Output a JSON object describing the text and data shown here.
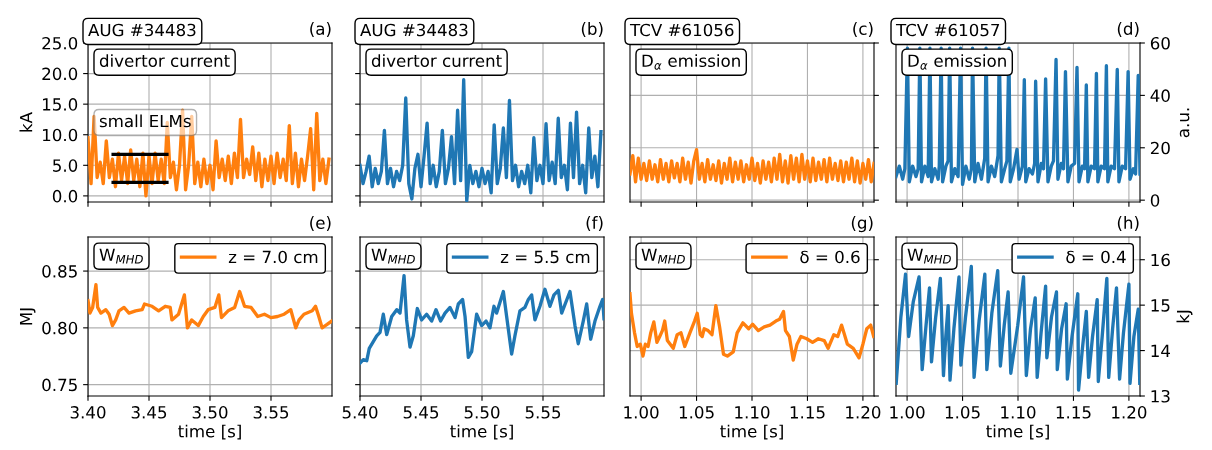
{
  "chart_data": [
    {
      "type": "line",
      "title": "AUG #34483",
      "ylabel": "kA",
      "annotations": [
        "(a)",
        "divertor current",
        "small ELMs"
      ],
      "xlim": [
        3.4,
        3.6
      ],
      "xticks": [
        3.4,
        3.45,
        3.5,
        3.55
      ],
      "ylim": [
        -1,
        25
      ],
      "yticks": [
        {
          "value": 0,
          "label": "0.0"
        },
        {
          "value": 5,
          "label": "5.0"
        },
        {
          "value": 10,
          "label": "10.0"
        },
        {
          "value": 15,
          "label": "15.0"
        },
        {
          "value": 20,
          "label": "20.0"
        },
        {
          "value": 25,
          "label": "25.0"
        }
      ],
      "grid": true,
      "tick_labels": "y",
      "series": [
        {
          "color": "#ff7f0e",
          "x": [
            3.4,
            3.4025,
            3.405,
            3.4075,
            3.41,
            3.4125,
            3.415,
            3.4175,
            3.42,
            3.4225,
            3.425,
            3.4275,
            3.43,
            3.4325,
            3.435,
            3.4375,
            3.44,
            3.4425,
            3.445,
            3.4475,
            3.45,
            3.4525,
            3.455,
            3.4575,
            3.46,
            3.4625,
            3.465,
            3.4675,
            3.47,
            3.4725,
            3.475,
            3.4775,
            3.48,
            3.4825,
            3.485,
            3.4875,
            3.49,
            3.4925,
            3.495,
            3.4975,
            3.5,
            3.5025,
            3.505,
            3.5075,
            3.51,
            3.5125,
            3.515,
            3.5175,
            3.52,
            3.5225,
            3.525,
            3.5275,
            3.53,
            3.5325,
            3.535,
            3.5375,
            3.54,
            3.5425,
            3.545,
            3.5475,
            3.55,
            3.5525,
            3.555,
            3.5575,
            3.56,
            3.5625,
            3.565,
            3.5675,
            3.57,
            3.5725,
            3.575,
            3.5775,
            3.58,
            3.5825,
            3.585,
            3.5875,
            3.59,
            3.5925,
            3.595,
            3.5975
          ],
          "values": [
            9.5,
            2,
            13,
            3,
            5.5,
            2,
            9,
            3,
            6,
            1.5,
            7,
            2.5,
            6.5,
            2,
            7.5,
            2.5,
            6,
            1.5,
            7,
            0,
            6.5,
            2,
            7,
            2.5,
            6,
            2,
            12,
            3,
            5.5,
            1,
            5,
            14,
            1,
            5,
            13,
            2,
            5.5,
            1.5,
            6,
            2,
            5,
            1,
            9,
            3,
            6,
            2.5,
            6.5,
            2,
            7,
            3,
            12.5,
            3,
            6,
            3.5,
            8,
            2.5,
            7,
            1.5,
            6,
            2.5,
            6.5,
            2,
            7,
            3,
            6,
            2.5,
            11.5,
            2,
            7,
            1.5,
            6,
            2.5,
            6.5,
            11,
            1,
            13.5,
            2.5,
            6,
            2,
            6
          ]
        },
        {
          "color": "#000000",
          "x": [
            3.4206,
            3.4647
          ],
          "values": [
            6.8,
            6.8
          ]
        },
        {
          "color": "#000000",
          "x": [
            3.4206,
            3.4647
          ],
          "values": [
            2.2,
            2.2
          ]
        }
      ]
    },
    {
      "type": "line",
      "title": "AUG #34483",
      "annotations": [
        "(b)",
        "divertor current"
      ],
      "xlim": [
        5.4,
        5.6
      ],
      "xticks": [
        5.4,
        5.45,
        5.5,
        5.55
      ],
      "ylim": [
        -1,
        25
      ],
      "yticks": [
        0,
        5,
        10,
        15,
        20,
        25
      ],
      "grid": true,
      "tick_labels": false,
      "series": [
        {
          "color": "#1f77b4",
          "x": [
            5.4,
            5.4025,
            5.405,
            5.4075,
            5.41,
            5.4125,
            5.415,
            5.4175,
            5.42,
            5.4225,
            5.425,
            5.4275,
            5.43,
            5.4325,
            5.435,
            5.4375,
            5.44,
            5.4425,
            5.445,
            5.4475,
            5.45,
            5.4525,
            5.455,
            5.4575,
            5.46,
            5.4625,
            5.465,
            5.4675,
            5.47,
            5.4725,
            5.475,
            5.4775,
            5.48,
            5.4825,
            5.485,
            5.4875,
            5.49,
            5.4925,
            5.495,
            5.4975,
            5.5,
            5.5025,
            5.505,
            5.5075,
            5.51,
            5.5125,
            5.515,
            5.5175,
            5.52,
            5.5225,
            5.525,
            5.5275,
            5.53,
            5.5325,
            5.535,
            5.5375,
            5.54,
            5.5425,
            5.545,
            5.5475,
            5.55,
            5.5525,
            5.555,
            5.5575,
            5.56,
            5.5625,
            5.565,
            5.5675,
            5.57,
            5.5725,
            5.575,
            5.5775,
            5.58,
            5.5825,
            5.585,
            5.5875,
            5.59,
            5.5925,
            5.595,
            5.5975
          ],
          "values": [
            5,
            2,
            4,
            6.5,
            1.5,
            4.5,
            2,
            4,
            10.7,
            2,
            4.5,
            1.5,
            4,
            2.5,
            5,
            16,
            2,
            -0.5,
            4.5,
            6.8,
            1.5,
            6.5,
            11.9,
            2,
            5,
            1.5,
            4,
            10.7,
            2,
            4.5,
            9.7,
            2,
            14,
            2.5,
            19,
            -0.8,
            5,
            2,
            4,
            1.5,
            4.5,
            2,
            4,
            0.5,
            11.6,
            2,
            4.5,
            11.1,
            3,
            15.6,
            2.5,
            5,
            1.5,
            4,
            2,
            5,
            0.5,
            9.5,
            2.5,
            5,
            2,
            11.8,
            2.5,
            5.5,
            2,
            12.7,
            3,
            5,
            1,
            11.9,
            3,
            13.7,
            2,
            5,
            0.5,
            11.1,
            3,
            6.5,
            1.5,
            10.5
          ]
        }
      ]
    },
    {
      "type": "line",
      "title": "TCV #61056",
      "annotations": [
        "(c)",
        "D$_{α}$ emission"
      ],
      "xlim": [
        0.99,
        1.21
      ],
      "xticks": [
        1.0,
        1.05,
        1.1,
        1.15,
        1.2
      ],
      "y2lim": [
        -0.7,
        60
      ],
      "y2ticks": [
        0,
        20,
        40,
        60
      ],
      "grid": true,
      "tick_labels": false,
      "series": [
        {
          "color": "#ff7f0e",
          "axis": "y2",
          "x": [
            0.99,
            0.9925,
            0.995,
            0.9975,
            1.0,
            1.0025,
            1.005,
            1.0075,
            1.01,
            1.0125,
            1.015,
            1.0175,
            1.02,
            1.0225,
            1.025,
            1.0275,
            1.03,
            1.0325,
            1.035,
            1.0375,
            1.04,
            1.0425,
            1.045,
            1.0475,
            1.05,
            1.0525,
            1.055,
            1.0575,
            1.06,
            1.0625,
            1.065,
            1.0675,
            1.07,
            1.0725,
            1.075,
            1.0775,
            1.08,
            1.0825,
            1.085,
            1.0875,
            1.09,
            1.0925,
            1.095,
            1.0975,
            1.1,
            1.1025,
            1.105,
            1.1075,
            1.11,
            1.1125,
            1.115,
            1.1175,
            1.12,
            1.1225,
            1.125,
            1.1275,
            1.13,
            1.1325,
            1.135,
            1.1375,
            1.14,
            1.1425,
            1.145,
            1.1475,
            1.15,
            1.1525,
            1.155,
            1.1575,
            1.16,
            1.1625,
            1.165,
            1.1675,
            1.17,
            1.1725,
            1.175,
            1.1775,
            1.18,
            1.1825,
            1.185,
            1.1875,
            1.19,
            1.1925,
            1.195,
            1.1975,
            1.2,
            1.2025,
            1.205,
            1.2075,
            1.21
          ],
          "values": [
            10,
            17,
            7,
            16,
            8,
            14,
            7.5,
            15,
            8,
            13.5,
            7,
            15.5,
            8,
            14,
            7,
            15,
            8.5,
            14,
            7,
            16,
            8,
            14.5,
            6.5,
            15,
            19.3,
            8,
            14,
            7,
            15.5,
            8,
            13.5,
            7.5,
            15,
            6.5,
            14,
            8,
            16,
            7,
            14.5,
            8,
            15,
            7,
            13.5,
            8,
            16,
            7.5,
            14,
            6.5,
            15,
            8,
            14.5,
            7,
            16,
            8,
            17.5,
            7,
            15,
            6.5,
            17,
            8,
            16,
            7,
            17.5,
            8,
            15,
            7,
            16,
            7.5,
            14.5,
            8,
            15.5,
            7,
            16,
            8,
            14,
            7.5,
            15,
            7,
            14.5,
            8,
            16,
            7,
            15,
            6.5,
            14,
            8,
            15.5,
            7,
            14
          ]
        }
      ]
    },
    {
      "type": "line",
      "title": "TCV #61057",
      "y2label": "a.u.",
      "annotations": [
        "(d)",
        "D$_{α}$ emission"
      ],
      "xlim": [
        0.99,
        1.21
      ],
      "xticks": [
        1.0,
        1.05,
        1.1,
        1.15,
        1.2
      ],
      "y2lim": [
        -0.7,
        60
      ],
      "y2ticks": [
        0,
        20,
        40,
        60
      ],
      "grid": true,
      "tick_labels": "y",
      "series": [
        {
          "color": "#1f77b4",
          "axis": "y2",
          "x": [
            0.99,
            0.993,
            0.996,
            0.998,
            1.0003,
            1.002,
            1.005,
            1.008,
            1.01,
            1.0115,
            1.013,
            1.016,
            1.019,
            1.0206,
            1.022,
            1.025,
            1.028,
            1.029,
            1.0307,
            1.032,
            1.035,
            1.037,
            1.0384,
            1.04,
            1.043,
            1.046,
            1.0482,
            1.05,
            1.053,
            1.056,
            1.058,
            1.059,
            1.061,
            1.064,
            1.067,
            1.07,
            1.0712,
            1.073,
            1.076,
            1.079,
            1.082,
            1.0831,
            1.085,
            1.088,
            1.09,
            1.0918,
            1.093,
            1.096,
            1.0991,
            1.101,
            1.104,
            1.1057,
            1.107,
            1.11,
            1.113,
            1.115,
            1.1159,
            1.118,
            1.121,
            1.123,
            1.1249,
            1.127,
            1.13,
            1.132,
            1.1343,
            1.136,
            1.139,
            1.141,
            1.1428,
            1.145,
            1.148,
            1.151,
            1.1532,
            1.155,
            1.158,
            1.16,
            1.1616,
            1.163,
            1.166,
            1.169,
            1.1707,
            1.172,
            1.175,
            1.178,
            1.1797,
            1.181,
            1.184,
            1.187,
            1.1895,
            1.191,
            1.194,
            1.197,
            1.1993,
            1.201,
            1.204,
            1.206,
            1.2084,
            1.21
          ],
          "values": [
            9,
            13,
            8,
            12,
            58,
            7,
            13,
            9,
            12,
            58,
            7,
            13,
            9,
            58,
            7,
            12,
            8,
            13,
            58,
            7,
            13,
            15,
            58,
            7,
            12,
            9,
            58,
            6,
            13,
            8,
            12,
            58,
            7,
            14,
            8,
            16,
            58,
            7,
            13,
            9,
            17,
            58,
            7,
            12,
            15,
            58,
            7,
            12,
            19.4,
            8,
            13,
            46,
            7,
            12,
            10,
            14,
            45.4,
            7,
            14,
            12,
            46.3,
            7,
            13,
            15,
            53.7,
            8,
            14,
            12,
            49.1,
            7,
            13,
            14,
            50.7,
            7,
            13,
            12,
            44,
            7,
            13,
            12,
            48.4,
            7,
            13,
            12,
            51.3,
            7,
            13,
            12,
            49.9,
            7,
            13,
            12,
            49.1,
            8,
            12,
            10,
            47.6,
            10
          ]
        }
      ]
    },
    {
      "type": "line",
      "xlabel": "time [s]",
      "ylabel": "MJ",
      "annotations": [
        "(e)",
        "W$_{MHD}$"
      ],
      "xlim": [
        3.4,
        3.6
      ],
      "xticks": [
        {
          "value": 3.4,
          "label": "3.40"
        },
        {
          "value": 3.45,
          "label": "3.45"
        },
        {
          "value": 3.5,
          "label": "3.50"
        },
        {
          "value": 3.55,
          "label": "3.55"
        }
      ],
      "ylim": [
        0.74,
        0.88
      ],
      "yticks": [
        {
          "value": 0.75,
          "label": "0.75"
        },
        {
          "value": 0.8,
          "label": "0.80"
        },
        {
          "value": 0.85,
          "label": "0.85"
        }
      ],
      "grid": true,
      "legend": "top right",
      "series": [
        {
          "name": "z = 7.0 cm",
          "color": "#ff7f0e",
          "x": [
            3.4,
            3.4016,
            3.4038,
            3.4065,
            3.4079,
            3.4106,
            3.4146,
            3.4173,
            3.42,
            3.4227,
            3.4254,
            3.4295,
            3.4336,
            3.439,
            3.4444,
            3.4463,
            3.4525,
            3.4579,
            3.4633,
            3.4674,
            3.4688,
            3.4742,
            3.479,
            3.4815,
            3.485,
            3.4904,
            3.4945,
            3.4985,
            3.504,
            3.5072,
            3.5094,
            3.5148,
            3.5202,
            3.5243,
            3.5283,
            3.5337,
            3.5391,
            3.5446,
            3.55,
            3.5554,
            3.5608,
            3.5662,
            3.5703,
            3.573,
            3.577,
            3.5838,
            3.5865,
            3.5892,
            3.5919,
            3.596,
            3.5998
          ],
          "values": [
            0.824,
            0.813,
            0.818,
            0.838,
            0.818,
            0.813,
            0.816,
            0.812,
            0.802,
            0.807,
            0.815,
            0.818,
            0.813,
            0.815,
            0.816,
            0.821,
            0.819,
            0.815,
            0.819,
            0.818,
            0.807,
            0.812,
            0.829,
            0.8,
            0.807,
            0.802,
            0.81,
            0.816,
            0.818,
            0.829,
            0.809,
            0.815,
            0.818,
            0.832,
            0.819,
            0.818,
            0.81,
            0.812,
            0.809,
            0.81,
            0.812,
            0.816,
            0.8,
            0.807,
            0.812,
            0.815,
            0.819,
            0.81,
            0.8,
            0.803,
            0.806
          ]
        }
      ]
    },
    {
      "type": "line",
      "xlabel": "time [s]",
      "annotations": [
        "(f)",
        "W$_{MHD}$"
      ],
      "xlim": [
        5.4,
        5.6
      ],
      "xticks": [
        {
          "value": 5.4,
          "label": "5.40"
        },
        5.45,
        {
          "value": 5.5,
          "label": "5.50"
        },
        5.55
      ],
      "ylim": [
        0.74,
        0.88
      ],
      "yticks": [
        0.75,
        0.8,
        0.85
      ],
      "grid": true,
      "legend": "top right",
      "tick_labels": "x",
      "series": [
        {
          "name": "z = 5.5 cm",
          "color": "#1f77b4",
          "x": [
            5.4,
            5.4027,
            5.4055,
            5.4076,
            5.4104,
            5.4137,
            5.4164,
            5.4191,
            5.4219,
            5.426,
            5.4301,
            5.4328,
            5.4361,
            5.4382,
            5.441,
            5.4437,
            5.447,
            5.4505,
            5.4546,
            5.4587,
            5.4623,
            5.4661,
            5.4697,
            5.4738,
            5.4779,
            5.4806,
            5.4841,
            5.4861,
            5.4888,
            5.4915,
            5.4956,
            5.4997,
            5.5033,
            5.5065,
            5.5098,
            5.512,
            5.5175,
            5.5202,
            5.5243,
            5.527,
            5.5311,
            5.5352,
            5.538,
            5.5407,
            5.5434,
            5.5475,
            5.5516,
            5.5557,
            5.559,
            5.5626,
            5.5653,
            5.5721,
            5.5762,
            5.5789,
            5.583,
            5.5858,
            5.5891,
            5.5926,
            5.5967,
            5.5989,
            5.6
          ],
          "values": [
            0.769,
            0.772,
            0.771,
            0.782,
            0.787,
            0.793,
            0.796,
            0.812,
            0.794,
            0.81,
            0.816,
            0.813,
            0.846,
            0.807,
            0.783,
            0.793,
            0.817,
            0.807,
            0.812,
            0.806,
            0.816,
            0.806,
            0.813,
            0.818,
            0.809,
            0.821,
            0.825,
            0.81,
            0.774,
            0.779,
            0.812,
            0.802,
            0.806,
            0.8,
            0.819,
            0.813,
            0.832,
            0.81,
            0.777,
            0.793,
            0.815,
            0.818,
            0.825,
            0.829,
            0.807,
            0.819,
            0.834,
            0.819,
            0.829,
            0.833,
            0.813,
            0.832,
            0.802,
            0.786,
            0.806,
            0.821,
            0.79,
            0.806,
            0.819,
            0.825,
            0.808
          ]
        }
      ]
    },
    {
      "type": "line",
      "xlabel": "time [s]",
      "annotations": [
        "(g)",
        "W$_{MHD}$"
      ],
      "xlim": [
        0.99,
        1.21
      ],
      "xticks": [
        {
          "value": 1.0,
          "label": "1.00"
        },
        1.05,
        {
          "value": 1.1,
          "label": "1.10"
        },
        1.15,
        {
          "value": 1.2,
          "label": "1.20"
        }
      ],
      "y2lim": [
        13,
        16.5
      ],
      "y2ticks": [
        13,
        14,
        15,
        16
      ],
      "grid": true,
      "legend": "top right",
      "tick_labels": "x",
      "series": [
        {
          "name": "δ = 0.6",
          "color": "#ff7f0e",
          "axis": "y2",
          "x": [
            0.99,
            0.9913,
            0.9941,
            0.9965,
            0.9993,
            1.0017,
            1.0038,
            1.0063,
            1.0087,
            1.0115,
            1.0143,
            1.0168,
            1.0192,
            1.0213,
            1.0237,
            1.029,
            1.0325,
            1.036,
            1.0394,
            1.044,
            1.0482,
            1.0506,
            1.0534,
            1.0551,
            1.0569,
            1.0604,
            1.0639,
            1.0674,
            1.0708,
            1.0743,
            1.0778,
            1.0831,
            1.0866,
            1.0918,
            1.097,
            1.1005,
            1.1057,
            1.111,
            1.1162,
            1.1215,
            1.1249,
            1.1284,
            1.1302,
            1.1337,
            1.1372,
            1.1406,
            1.1441,
            1.1494,
            1.1546,
            1.1598,
            1.1651,
            1.1686,
            1.1738,
            1.1773,
            1.1808,
            1.186,
            1.1913,
            1.1965,
            1.2,
            1.2035,
            1.207,
            1.2097
          ],
          "values": [
            15.25,
            14.82,
            14.39,
            14.09,
            14.14,
            13.88,
            14.14,
            14.09,
            14.39,
            14.63,
            14.18,
            14.31,
            14.44,
            14.65,
            14.22,
            14.05,
            14.35,
            14.39,
            14.09,
            14.39,
            14.65,
            14.82,
            14.35,
            14.31,
            14.48,
            14.44,
            14.35,
            14.99,
            14.52,
            13.92,
            13.88,
            13.97,
            14.39,
            14.61,
            14.48,
            14.58,
            14.44,
            14.52,
            14.56,
            14.65,
            14.69,
            14.86,
            14.44,
            14.31,
            13.79,
            14.14,
            14.31,
            14.26,
            14.18,
            14.26,
            14.22,
            14.05,
            14.35,
            14.31,
            14.56,
            14.14,
            14.05,
            13.84,
            14.14,
            14.48,
            14.56,
            14.31
          ]
        }
      ]
    },
    {
      "type": "line",
      "xlabel": "time [s]",
      "y2label": "kJ",
      "annotations": [
        "(h)",
        "W$_{MHD}$"
      ],
      "xlim": [
        0.99,
        1.21
      ],
      "xticks": [
        {
          "value": 1.0,
          "label": "1.00"
        },
        1.05,
        {
          "value": 1.1,
          "label": "1.10"
        },
        1.15,
        {
          "value": 1.2,
          "label": "1.20"
        }
      ],
      "y2lim": [
        13,
        16.5
      ],
      "y2ticks": [
        13,
        14,
        15,
        16
      ],
      "grid": true,
      "legend": "top right",
      "series": [
        {
          "name": "δ = 0.4",
          "color": "#1f77b4",
          "axis": "y2",
          "x": [
            0.9902,
            0.9944,
            0.9986,
            1.0014,
            1.0056,
            1.0108,
            1.0136,
            1.0171,
            1.0202,
            1.022,
            1.0258,
            1.03,
            1.0328,
            1.0349,
            1.037,
            1.0387,
            1.0422,
            1.0468,
            1.0485,
            1.0527,
            1.0579,
            1.0604,
            1.0649,
            1.0701,
            1.0719,
            1.0764,
            1.0817,
            1.0841,
            1.0876,
            1.0911,
            1.0935,
            1.0998,
            1.105,
            1.1075,
            1.1113,
            1.1155,
            1.1173,
            1.1208,
            1.1249,
            1.126,
            1.1302,
            1.1347,
            1.1354,
            1.1393,
            1.1434,
            1.1445,
            1.1487,
            1.1539,
            1.1546,
            1.1581,
            1.1616,
            1.1637,
            1.1672,
            1.1714,
            1.1724,
            1.1759,
            1.1801,
            1.1818,
            1.1853,
            1.1888,
            1.1916,
            1.1951,
            1.2,
            1.201,
            1.2045,
            1.2084,
            1.2098
          ],
          "values": [
            13.28,
            14.74,
            15.68,
            14.31,
            15.08,
            15.62,
            13.58,
            14.56,
            15.38,
            13.75,
            14.74,
            15.59,
            13.45,
            14.31,
            14.99,
            13.35,
            14.48,
            15.62,
            13.68,
            14.74,
            15.85,
            13.41,
            14.65,
            15.68,
            13.58,
            14.82,
            15.76,
            13.66,
            14.56,
            15.29,
            13.5,
            14.56,
            15.62,
            13.45,
            14.48,
            15.16,
            13.41,
            14.39,
            15.42,
            13.84,
            14.74,
            15.29,
            13.58,
            14.48,
            15.03,
            13.37,
            14.31,
            15.25,
            13.13,
            14.05,
            14.86,
            13.41,
            14.31,
            15.12,
            13.32,
            14.31,
            15.59,
            13.41,
            14.48,
            15.38,
            13.37,
            14.39,
            15.46,
            13.28,
            14.31,
            14.91,
            13.28
          ]
        }
      ]
    }
  ]
}
